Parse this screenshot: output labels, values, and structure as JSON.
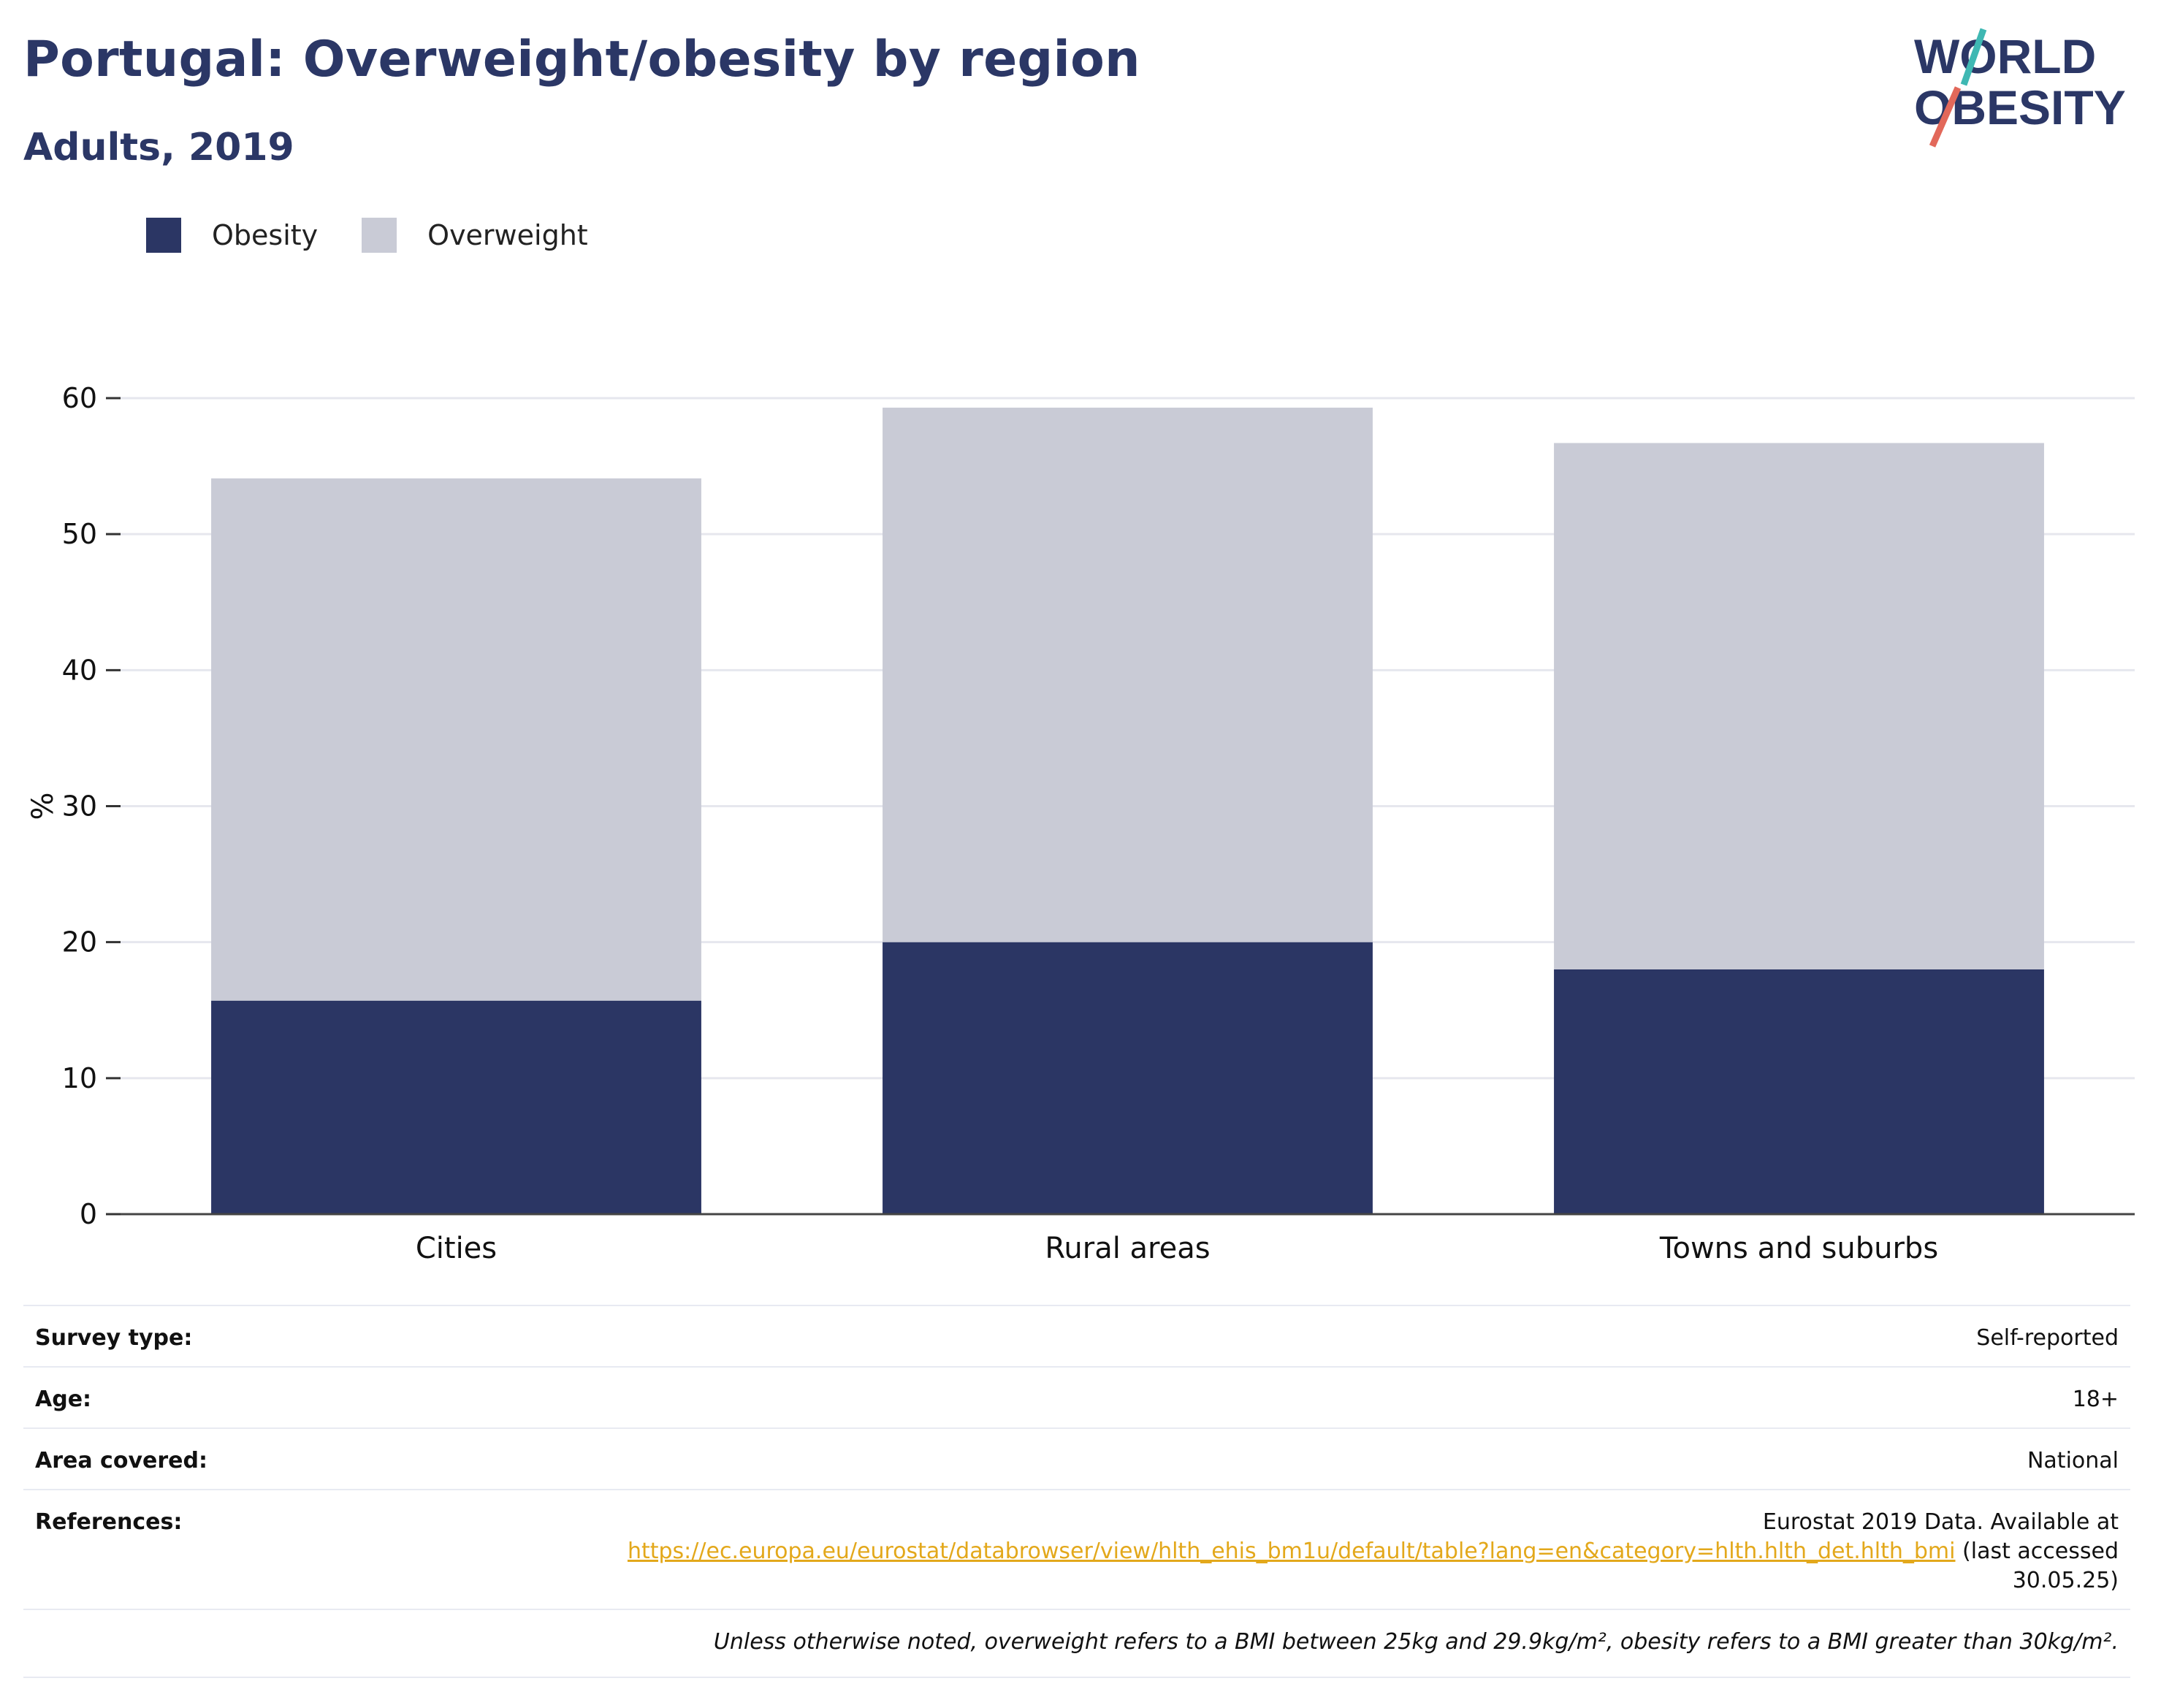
{
  "header": {
    "title": "Portugal: Overweight/obesity by region",
    "subtitle": "Adults, 2019"
  },
  "logo": {
    "line1": "WORLD",
    "line2": "OBESITY"
  },
  "colors": {
    "obesity": "#2b3664",
    "overweight": "#c9cbd6",
    "title": "#2b3766",
    "link": "#e3a81b",
    "logo_teal": "#3fb8b3",
    "logo_coral": "#e2685a"
  },
  "legend": {
    "items": [
      {
        "label": "Obesity",
        "color": "#2b3664"
      },
      {
        "label": "Overweight",
        "color": "#c9cbd6"
      }
    ]
  },
  "chart_data": {
    "type": "bar",
    "stacked": true,
    "categories": [
      "Cities",
      "Rural areas",
      "Towns and suburbs"
    ],
    "series": [
      {
        "name": "Obesity",
        "values": [
          15.7,
          20.0,
          18.0
        ]
      },
      {
        "name": "Overweight",
        "values": [
          38.4,
          39.3,
          38.7
        ]
      }
    ],
    "ylabel": "%",
    "ylim": [
      0,
      60
    ],
    "yticks": [
      0,
      10,
      20,
      30,
      40,
      50,
      60
    ],
    "grid": true
  },
  "info": {
    "survey_type": {
      "label": "Survey type:",
      "value": "Self-reported"
    },
    "age": {
      "label": "Age:",
      "value": "18+"
    },
    "area": {
      "label": "Area covered:",
      "value": "National"
    },
    "references": {
      "label": "References:",
      "text": "Eurostat 2019 Data. Available at",
      "url": "https://ec.europa.eu/eurostat/databrowser/view/hlth_ehis_bm1u/default/table?lang=en&category=hlth.hlth_det.hlth_bmi",
      "after": "(last accessed",
      "date": "30.05.25)"
    },
    "note": "Unless otherwise noted, overweight refers to a BMI between 25kg and 29.9kg/m², obesity refers to a BMI greater than 30kg/m²."
  }
}
